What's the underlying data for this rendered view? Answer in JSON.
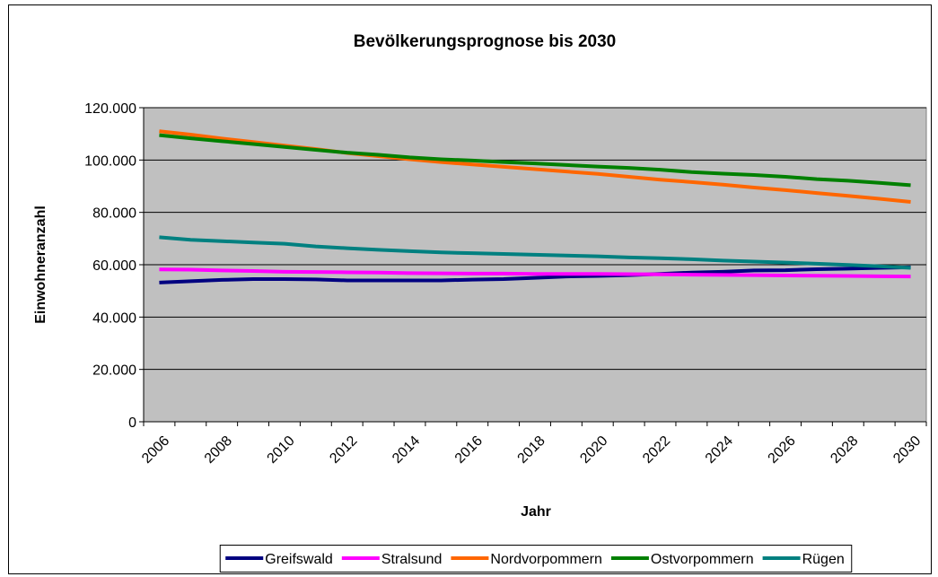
{
  "chart_data": {
    "type": "line",
    "title": "Bevölkerungsprognose bis 2030",
    "x_label": "Jahr",
    "y_label": "Einwohneranzahl",
    "categories": [
      "2006",
      null,
      "2008",
      null,
      "2010",
      null,
      "2012",
      null,
      "2014",
      null,
      "2016",
      null,
      "2018",
      null,
      "2020",
      null,
      "2022",
      null,
      "2024",
      null,
      "2026",
      null,
      "2028",
      null,
      "2030"
    ],
    "ylim": [
      0,
      120000
    ],
    "yticks": [
      0,
      {
        "value": 20000,
        "label": "20.000"
      },
      {
        "value": 40000,
        "label": "40.000"
      },
      {
        "value": 60000,
        "label": "60.000"
      },
      {
        "value": 80000,
        "label": "80.000"
      },
      {
        "value": 100000,
        "label": "100.000"
      },
      {
        "value": 120000,
        "label": "120.000"
      }
    ],
    "grid": true,
    "plot_background": "#c0c0c0",
    "legend": "bottom",
    "series": [
      {
        "name": "Greifswald",
        "color": "#000080",
        "values": [
          53200,
          53700,
          54200,
          54500,
          54500,
          54400,
          54000,
          54000,
          54000,
          54000,
          54300,
          54500,
          55000,
          55500,
          55700,
          56000,
          56500,
          57000,
          57300,
          57800,
          57900,
          58300,
          58500,
          58800,
          59000
        ]
      },
      {
        "name": "Stralsund",
        "color": "#ff00ff",
        "values": [
          58200,
          58100,
          57800,
          57600,
          57300,
          57200,
          57100,
          57000,
          56800,
          56700,
          56600,
          56600,
          56500,
          56500,
          56500,
          56400,
          56300,
          56200,
          56100,
          56000,
          55900,
          55800,
          55700,
          55600,
          55500
        ]
      },
      {
        "name": "Nordvorpommern",
        "color": "#ff6600",
        "values": [
          111000,
          109700,
          108200,
          106900,
          105500,
          104200,
          102700,
          101500,
          100300,
          99200,
          98300,
          97400,
          96500,
          95600,
          94700,
          93600,
          92500,
          91600,
          90600,
          89500,
          88500,
          87400,
          86300,
          85200,
          84000
        ]
      },
      {
        "name": "Ostvorpommern",
        "color": "#008000",
        "values": [
          109500,
          108300,
          107200,
          106100,
          105000,
          103900,
          102800,
          102000,
          101000,
          100300,
          99800,
          99200,
          98700,
          98100,
          97500,
          97000,
          96300,
          95400,
          94800,
          94300,
          93600,
          92700,
          92100,
          91300,
          90400
        ]
      },
      {
        "name": "Rügen",
        "color": "#008080",
        "values": [
          70500,
          69500,
          69000,
          68500,
          68000,
          67000,
          66300,
          65700,
          65200,
          64700,
          64400,
          64100,
          63800,
          63500,
          63200,
          62800,
          62500,
          62100,
          61600,
          61200,
          60800,
          60400,
          59900,
          59400,
          58800
        ]
      }
    ]
  }
}
